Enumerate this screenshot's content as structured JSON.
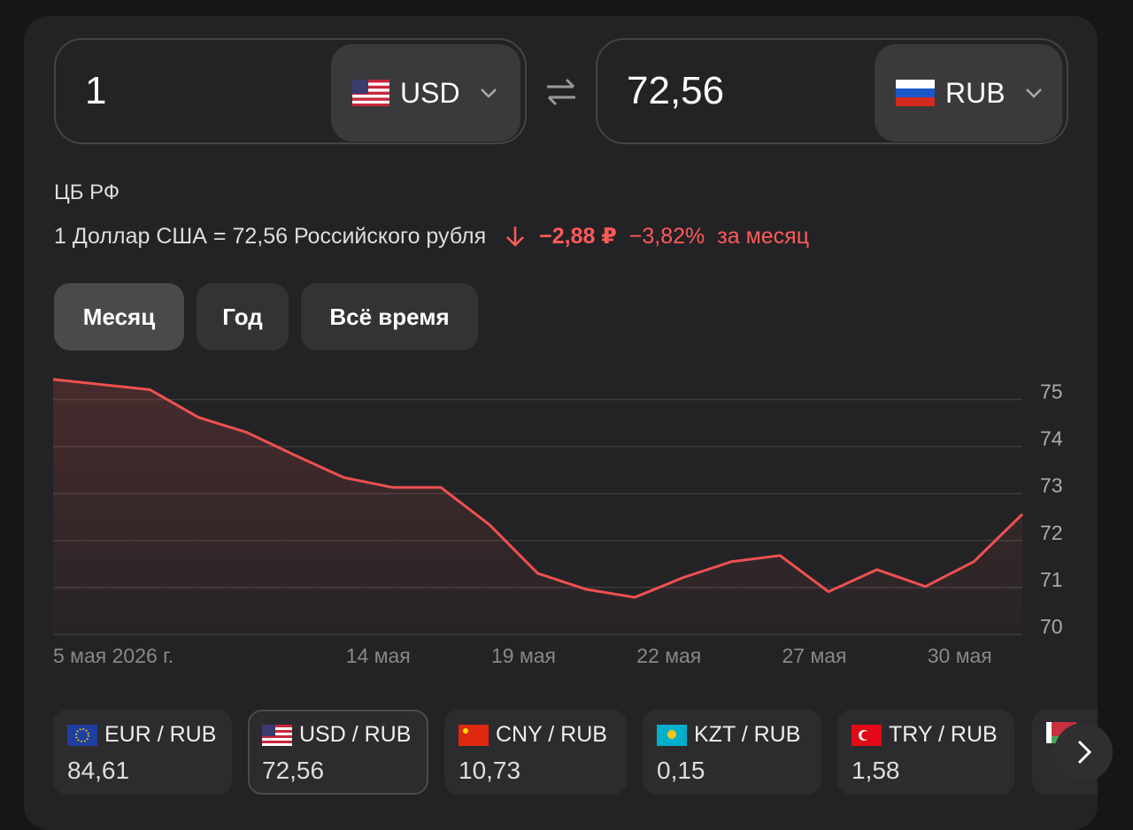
{
  "converter": {
    "from_amount": "1",
    "from_currency": "USD",
    "to_amount": "72,56",
    "to_currency": "RUB"
  },
  "rate_info": {
    "source": "ЦБ РФ",
    "rate_text": "1 Доллар США = 72,56 Российского рубля",
    "change_abs": "−2,88 ₽",
    "change_pct": "−3,82%",
    "period": "за месяц"
  },
  "tabs": [
    "Месяц",
    "Год",
    "Всё время"
  ],
  "chart_data": {
    "type": "line",
    "color": "#f05050",
    "categories": [
      "5 мая 2026 г.",
      null,
      null,
      null,
      null,
      null,
      null,
      "14 мая",
      null,
      null,
      "19 мая",
      null,
      null,
      "22 мая",
      null,
      null,
      "27 мая",
      null,
      null,
      "30 мая",
      null
    ],
    "values": [
      75.43,
      75.32,
      75.21,
      74.62,
      74.3,
      73.81,
      73.34,
      73.13,
      73.13,
      72.34,
      71.3,
      70.96,
      70.79,
      71.21,
      71.55,
      71.68,
      70.91,
      71.38,
      71.02,
      71.55,
      72.56
    ],
    "ylim": [
      70,
      75.5
    ],
    "yticks": [
      70,
      71,
      72,
      73,
      74,
      75
    ],
    "grid": true
  },
  "pairs": [
    {
      "name": "EUR / RUB",
      "value": "84,61"
    },
    {
      "name": "USD / RUB",
      "value": "72,56"
    },
    {
      "name": "CNY / RUB",
      "value": "10,73"
    },
    {
      "name": "KZT / RUB",
      "value": "0,15"
    },
    {
      "name": "TRY / RUB",
      "value": "1,58"
    }
  ]
}
